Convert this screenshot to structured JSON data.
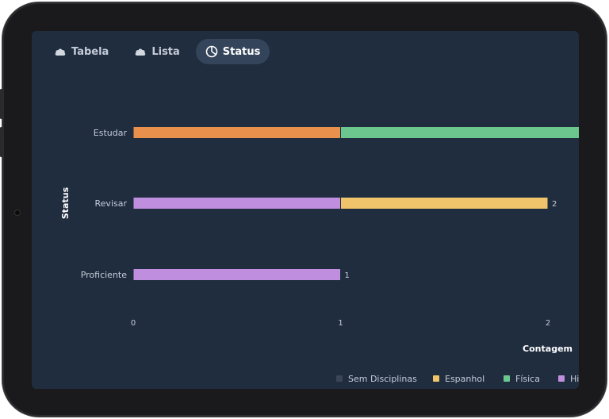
{
  "tabs": [
    {
      "label": "Tabela",
      "icon": "cloud-icon",
      "active": false
    },
    {
      "label": "Lista",
      "icon": "cloud-icon",
      "active": false
    },
    {
      "label": "Status",
      "icon": "pie-chart-icon",
      "active": true
    }
  ],
  "colors": {
    "screen_bg": "#202d3f",
    "tab_active_bg": "#34445a",
    "Sem Disciplinas": "#3a4658",
    "Espanhol": "#f0c46a",
    "Física": "#6cc78e",
    "História": "#c08ede",
    "orange": "#e8904c"
  },
  "chart_data": {
    "type": "bar",
    "orientation": "horizontal",
    "stacked": true,
    "ylabel": "Status",
    "xlabel": "Contagem",
    "xticks": [
      0,
      1,
      2
    ],
    "categories": [
      "Estudar",
      "Revisar",
      "Proficiente"
    ],
    "rows": [
      {
        "category": "Estudar",
        "segments": [
          {
            "value": 1,
            "color": "#e8904c"
          },
          {
            "value": 1.2,
            "color": "#6cc78e"
          }
        ],
        "total_label": ""
      },
      {
        "category": "Revisar",
        "segments": [
          {
            "value": 1,
            "color": "#c08ede"
          },
          {
            "value": 1,
            "color": "#f0c46a"
          }
        ],
        "total_label": "2"
      },
      {
        "category": "Proficiente",
        "segments": [
          {
            "value": 1,
            "color": "#c08ede"
          }
        ],
        "total_label": "1"
      }
    ],
    "legend": [
      {
        "name": "Sem Disciplinas",
        "color": "#3a4658"
      },
      {
        "name": "Espanhol",
        "color": "#f0c46a"
      },
      {
        "name": "Física",
        "color": "#6cc78e"
      },
      {
        "name": "Hi",
        "color": "#c08ede"
      }
    ],
    "legend_position": "bottom-right"
  }
}
